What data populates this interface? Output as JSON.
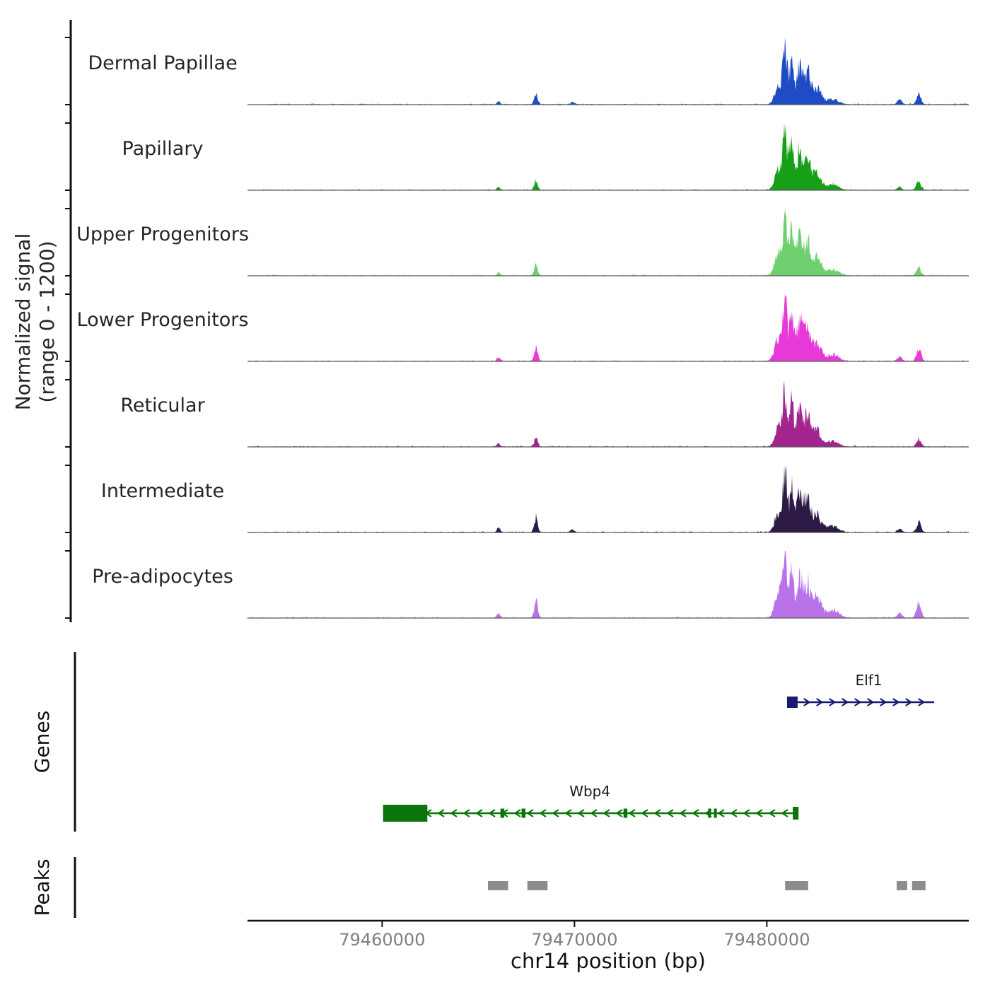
{
  "figure": {
    "y_axis_label_line1": "Normalized signal",
    "y_axis_label_line2": "(range 0 - 1200)",
    "genes_section_label": "Genes",
    "peaks_section_label": "Peaks",
    "x_axis_label": "chr14 position (bp)"
  },
  "chart_data": {
    "type": "area",
    "description": "Genome browser normalized signal tracks with gene models and called peaks",
    "x_domain": [
      79453000,
      79490500
    ],
    "x_ticks": [
      79460000,
      79470000,
      79480000
    ],
    "signal_range": [
      0,
      1200
    ],
    "tracks": [
      {
        "name": "Dermal Papillae",
        "color": "#1e4cc4",
        "peaks": [
          [
            79466050,
            180,
            60
          ],
          [
            79468000,
            200,
            230
          ],
          [
            79469900,
            250,
            45
          ],
          [
            79480600,
            420,
            330
          ],
          [
            79480950,
            260,
            1060
          ],
          [
            79481300,
            240,
            900
          ],
          [
            79481700,
            300,
            740
          ],
          [
            79482100,
            350,
            620
          ],
          [
            79482600,
            480,
            320
          ],
          [
            79483400,
            700,
            110
          ],
          [
            79486900,
            260,
            90
          ],
          [
            79487900,
            260,
            210
          ]
        ]
      },
      {
        "name": "Papillary",
        "color": "#17a017",
        "peaks": [
          [
            79466050,
            180,
            55
          ],
          [
            79468000,
            200,
            190
          ],
          [
            79480600,
            420,
            370
          ],
          [
            79480950,
            260,
            1060
          ],
          [
            79481300,
            240,
            950
          ],
          [
            79481700,
            300,
            800
          ],
          [
            79482100,
            350,
            620
          ],
          [
            79482600,
            480,
            330
          ],
          [
            79483400,
            700,
            110
          ],
          [
            79486900,
            260,
            60
          ],
          [
            79487900,
            260,
            170
          ]
        ]
      },
      {
        "name": "Upper Progenitors",
        "color": "#6fd06f",
        "peaks": [
          [
            79466050,
            180,
            60
          ],
          [
            79468000,
            200,
            200
          ],
          [
            79480600,
            420,
            420
          ],
          [
            79480950,
            260,
            1060
          ],
          [
            79481300,
            240,
            850
          ],
          [
            79481700,
            300,
            860
          ],
          [
            79482100,
            350,
            660
          ],
          [
            79482600,
            480,
            350
          ],
          [
            79483400,
            700,
            120
          ],
          [
            79487900,
            260,
            150
          ]
        ]
      },
      {
        "name": "Lower Progenitors",
        "color": "#e83ad8",
        "peaks": [
          [
            79466050,
            180,
            70
          ],
          [
            79468000,
            200,
            270
          ],
          [
            79480600,
            420,
            420
          ],
          [
            79480950,
            260,
            1060
          ],
          [
            79481300,
            240,
            920
          ],
          [
            79481700,
            300,
            800
          ],
          [
            79482100,
            350,
            700
          ],
          [
            79482600,
            480,
            360
          ],
          [
            79483400,
            700,
            130
          ],
          [
            79486900,
            260,
            90
          ],
          [
            79487900,
            260,
            230
          ]
        ]
      },
      {
        "name": "Reticular",
        "color": "#a2258f",
        "peaks": [
          [
            79466050,
            180,
            60
          ],
          [
            79468000,
            200,
            170
          ],
          [
            79480600,
            420,
            360
          ],
          [
            79480950,
            260,
            1020
          ],
          [
            79481300,
            240,
            860
          ],
          [
            79481700,
            300,
            760
          ],
          [
            79482100,
            350,
            610
          ],
          [
            79482600,
            480,
            310
          ],
          [
            79483400,
            700,
            100
          ],
          [
            79487900,
            260,
            140
          ]
        ]
      },
      {
        "name": "Intermediate",
        "color": "#2c1a45",
        "peaks": [
          [
            79466050,
            180,
            80
          ],
          [
            79468000,
            200,
            290
          ],
          [
            79469900,
            220,
            60
          ],
          [
            79480600,
            420,
            360
          ],
          [
            79480950,
            260,
            1060
          ],
          [
            79481300,
            240,
            820
          ],
          [
            79481700,
            300,
            860
          ],
          [
            79482100,
            350,
            700
          ],
          [
            79482600,
            480,
            360
          ],
          [
            79483400,
            700,
            120
          ],
          [
            79486900,
            260,
            70
          ],
          [
            79487900,
            260,
            190
          ]
        ]
      },
      {
        "name": "Pre-adipocytes",
        "color": "#b873e8",
        "peaks": [
          [
            79466050,
            180,
            95
          ],
          [
            79468000,
            200,
            330
          ],
          [
            79480600,
            420,
            470
          ],
          [
            79480950,
            260,
            1060
          ],
          [
            79481300,
            240,
            920
          ],
          [
            79481700,
            300,
            810
          ],
          [
            79482100,
            350,
            660
          ],
          [
            79482600,
            480,
            410
          ],
          [
            79483400,
            700,
            160
          ],
          [
            79486900,
            260,
            95
          ],
          [
            79487900,
            260,
            310
          ]
        ]
      }
    ],
    "genes": [
      {
        "name": "Elf1",
        "strand": "+",
        "color": "#191970",
        "row": 0,
        "start": 79481050,
        "end": 79488700,
        "label_bp": 79485300,
        "exons": [
          [
            79481050,
            79481600,
            16
          ]
        ]
      },
      {
        "name": "Wbp4",
        "strand": "-",
        "color": "#0a750a",
        "row": 1,
        "start": 79460050,
        "end": 79481650,
        "label_bp": 79470800,
        "exons": [
          [
            79460050,
            79462350,
            24
          ],
          [
            79466150,
            79466350,
            13
          ],
          [
            79467250,
            79467450,
            13
          ],
          [
            79472550,
            79472750,
            13
          ],
          [
            79476950,
            79477100,
            13
          ],
          [
            79477250,
            79477400,
            13
          ],
          [
            79481350,
            79481650,
            18
          ]
        ]
      }
    ],
    "peak_calls": [
      [
        79465500,
        79466550
      ],
      [
        79467550,
        79468600
      ],
      [
        79480950,
        79482150
      ],
      [
        79486750,
        79487300
      ],
      [
        79487550,
        79488250
      ]
    ],
    "colors": {
      "peak_boxes": "#8c8c8c",
      "baseline": "#5a5a5a",
      "axis": "#111111",
      "tick_labels": "#7f7f7f"
    }
  }
}
